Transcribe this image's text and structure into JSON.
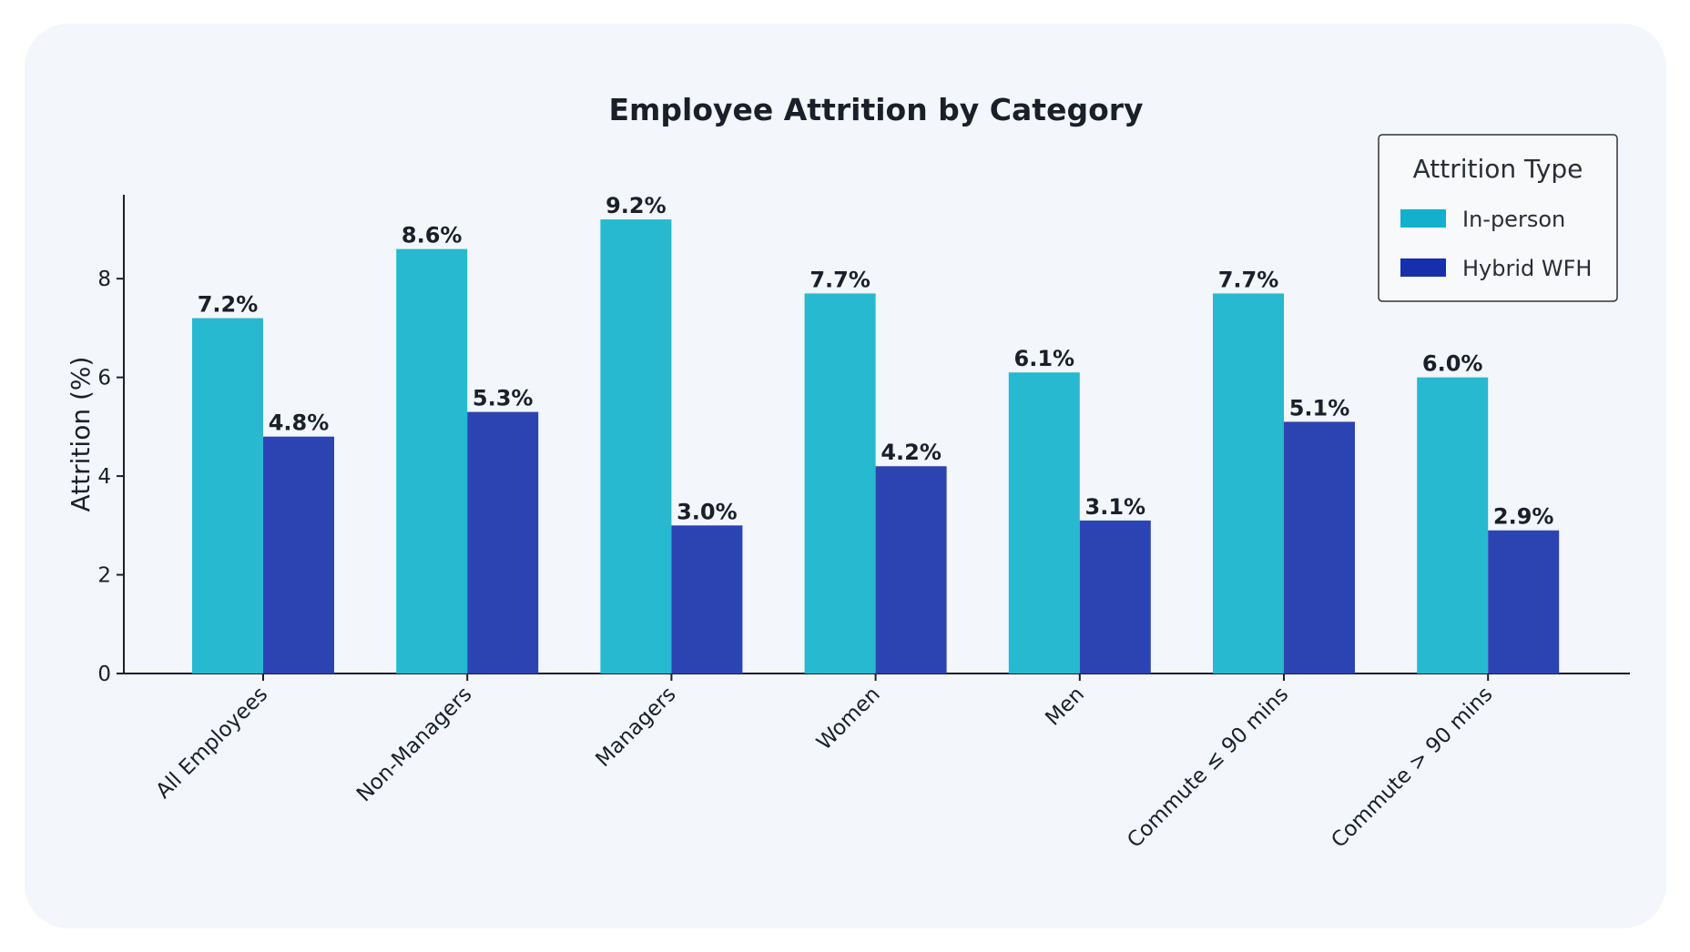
{
  "chart_data": {
    "type": "bar",
    "title": "Employee Attrition by Category",
    "xlabel": "",
    "ylabel": "Attrition (%)",
    "ylim": [
      0,
      9.7
    ],
    "yticks": [
      0,
      2,
      4,
      6,
      8
    ],
    "grid": false,
    "legend_title": "Attrition Type",
    "legend_position": "top-right",
    "categories": [
      "All Employees",
      "Non-Managers",
      "Managers",
      "Women",
      "Men",
      "Commute ≤ 90 mins",
      "Commute > 90 mins"
    ],
    "series": [
      {
        "name": "In-person",
        "color": "#26b9cf",
        "values": [
          7.2,
          8.6,
          9.2,
          7.7,
          6.1,
          7.7,
          6.0
        ],
        "labels": [
          "7.2%",
          "8.6%",
          "9.2%",
          "7.7%",
          "6.1%",
          "7.7%",
          "6.0%"
        ]
      },
      {
        "name": "Hybrid WFH",
        "color": "#2c44b2",
        "values": [
          4.8,
          5.3,
          3.0,
          4.2,
          3.1,
          5.1,
          2.9
        ],
        "labels": [
          "4.8%",
          "5.3%",
          "3.0%",
          "4.2%",
          "3.1%",
          "5.1%",
          "2.9%"
        ]
      }
    ],
    "legend_colors": [
      "#12b0cc",
      "#1530aa"
    ]
  }
}
